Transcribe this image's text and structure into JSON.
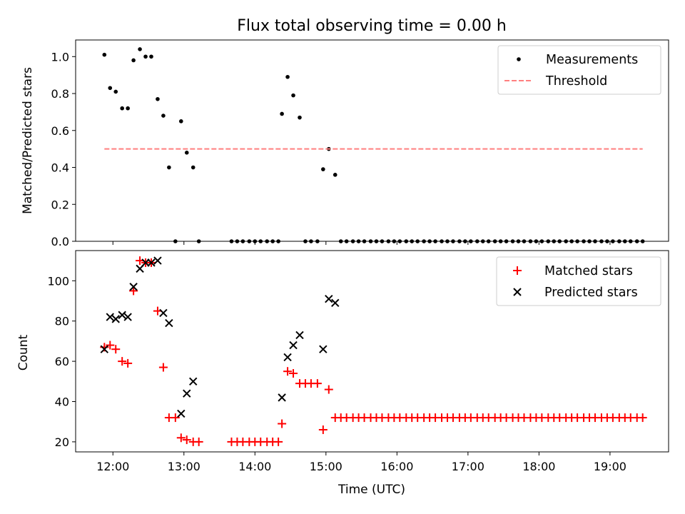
{
  "chart_data": {
    "title": "Flux total observing time = 0.00 h",
    "xlabel": "Time (UTC)",
    "x_ticks": [
      "12:00",
      "13:00",
      "14:00",
      "15:00",
      "16:00",
      "17:00",
      "18:00",
      "19:00"
    ],
    "x_tick_hours": [
      12,
      13,
      14,
      15,
      16,
      17,
      18,
      19
    ],
    "xlim_hours": [
      11.475,
      19.825
    ],
    "colors": {
      "measurements": "#000000",
      "threshold": "#ff7f7f",
      "matched": "#ff0000",
      "predicted": "#000000"
    },
    "panels": [
      {
        "type": "scatter",
        "ylabel": "Matched/Predicted stars",
        "ylim": [
          0,
          1.09
        ],
        "y_ticks": [
          "0.0",
          "0.2",
          "0.4",
          "0.6",
          "0.8",
          "1.0"
        ],
        "y_tick_values": [
          0,
          0.2,
          0.4,
          0.6,
          0.8,
          1.0
        ],
        "legend_position": "top-right",
        "series": [
          {
            "name": "Measurements",
            "marker": "dot",
            "x": [
              11.88,
              11.96,
              12.04,
              12.13,
              12.21,
              12.29,
              12.38,
              12.46,
              12.54,
              12.63,
              12.71,
              12.79,
              12.88,
              12.96,
              13.04,
              13.13,
              13.21,
              13.67,
              13.75,
              13.83,
              13.92,
              14.0,
              14.08,
              14.17,
              14.25,
              14.33,
              14.38,
              14.46,
              14.54,
              14.63,
              14.71,
              14.79,
              14.88,
              14.96,
              15.04,
              15.13,
              15.21,
              15.29,
              15.38,
              15.46,
              15.54,
              15.63,
              15.71,
              15.79,
              15.88,
              15.96,
              16.04,
              16.13,
              16.21,
              16.29,
              16.38,
              16.46,
              16.54,
              16.63,
              16.71,
              16.79,
              16.88,
              16.96,
              17.04,
              17.13,
              17.21,
              17.29,
              17.38,
              17.46,
              17.54,
              17.63,
              17.71,
              17.79,
              17.88,
              17.96,
              18.04,
              18.13,
              18.21,
              18.29,
              18.38,
              18.46,
              18.54,
              18.63,
              18.71,
              18.79,
              18.88,
              18.96,
              19.04,
              19.13,
              19.21,
              19.29,
              19.38,
              19.46
            ],
            "y": [
              1.01,
              0.83,
              0.81,
              0.72,
              0.72,
              0.98,
              1.04,
              1.0,
              1.0,
              0.77,
              0.68,
              0.4,
              0.0,
              0.65,
              0.48,
              0.4,
              0.0,
              0.0,
              0.0,
              0.0,
              0.0,
              0.0,
              0.0,
              0.0,
              0.0,
              0.0,
              0.69,
              0.89,
              0.79,
              0.67,
              0.0,
              0.0,
              0.0,
              0.39,
              0.5,
              0.36,
              0.0,
              0.0,
              0.0,
              0.0,
              0.0,
              0.0,
              0.0,
              0.0,
              0.0,
              0.0,
              0.0,
              0.0,
              0.0,
              0.0,
              0.0,
              0.0,
              0.0,
              0.0,
              0.0,
              0.0,
              0.0,
              0.0,
              0.0,
              0.0,
              0.0,
              0.0,
              0.0,
              0.0,
              0.0,
              0.0,
              0.0,
              0.0,
              0.0,
              0.0,
              0.0,
              0.0,
              0.0,
              0.0,
              0.0,
              0.0,
              0.0,
              0.0,
              0.0,
              0.0,
              0.0,
              0.0,
              0.0,
              0.0,
              0.0,
              0.0,
              0.0,
              0.0
            ]
          },
          {
            "name": "Threshold",
            "type": "line",
            "style": "dashed",
            "x": [
              11.88,
              19.46
            ],
            "y": [
              0.5,
              0.5
            ]
          }
        ]
      },
      {
        "type": "scatter",
        "ylabel": "Count",
        "ylim": [
          15,
          115
        ],
        "y_ticks": [
          "20",
          "40",
          "60",
          "80",
          "100"
        ],
        "y_tick_values": [
          20,
          40,
          60,
          80,
          100
        ],
        "legend_position": "top-right",
        "series": [
          {
            "name": "Matched stars",
            "marker": "plus",
            "x": [
              11.88,
              11.96,
              12.04,
              12.13,
              12.21,
              12.29,
              12.38,
              12.46,
              12.54,
              12.63,
              12.71,
              12.79,
              12.88,
              12.96,
              13.04,
              13.13,
              13.21,
              13.67,
              13.75,
              13.83,
              13.92,
              14.0,
              14.08,
              14.17,
              14.25,
              14.33,
              14.38,
              14.46,
              14.54,
              14.63,
              14.71,
              14.79,
              14.88,
              14.96,
              15.04,
              15.13,
              15.21,
              15.29,
              15.38,
              15.46,
              15.54,
              15.63,
              15.71,
              15.79,
              15.88,
              15.96,
              16.04,
              16.13,
              16.21,
              16.29,
              16.38,
              16.46,
              16.54,
              16.63,
              16.71,
              16.79,
              16.88,
              16.96,
              17.04,
              17.13,
              17.21,
              17.29,
              17.38,
              17.46,
              17.54,
              17.63,
              17.71,
              17.79,
              17.88,
              17.96,
              18.04,
              18.13,
              18.21,
              18.29,
              18.38,
              18.46,
              18.54,
              18.63,
              18.71,
              18.79,
              18.88,
              18.96,
              19.04,
              19.13,
              19.21,
              19.29,
              19.38,
              19.46
            ],
            "y": [
              67,
              68,
              66,
              60,
              59,
              95,
              110,
              109,
              109,
              85,
              57,
              32,
              32,
              22,
              21,
              20,
              20,
              20,
              20,
              20,
              20,
              20,
              20,
              20,
              20,
              20,
              29,
              55,
              54,
              49,
              49,
              49,
              49,
              26,
              46,
              32,
              32,
              32,
              32,
              32,
              32,
              32,
              32,
              32,
              32,
              32,
              32,
              32,
              32,
              32,
              32,
              32,
              32,
              32,
              32,
              32,
              32,
              32,
              32,
              32,
              32,
              32,
              32,
              32,
              32,
              32,
              32,
              32,
              32,
              32,
              32,
              32,
              32,
              32,
              32,
              32,
              32,
              32,
              32,
              32,
              32,
              32,
              32,
              32,
              32,
              32,
              32,
              32
            ]
          },
          {
            "name": "Predicted stars",
            "marker": "x",
            "x": [
              11.88,
              11.96,
              12.04,
              12.13,
              12.21,
              12.29,
              12.38,
              12.46,
              12.54,
              12.63,
              12.71,
              12.79,
              12.96,
              13.04,
              13.13,
              14.38,
              14.46,
              14.54,
              14.63,
              14.96,
              15.04,
              15.13
            ],
            "y": [
              66,
              82,
              81,
              83,
              82,
              97,
              106,
              109,
              109,
              110,
              84,
              79,
              34,
              44,
              50,
              42,
              62,
              68,
              73,
              66,
              91,
              89
            ]
          }
        ]
      }
    ]
  }
}
